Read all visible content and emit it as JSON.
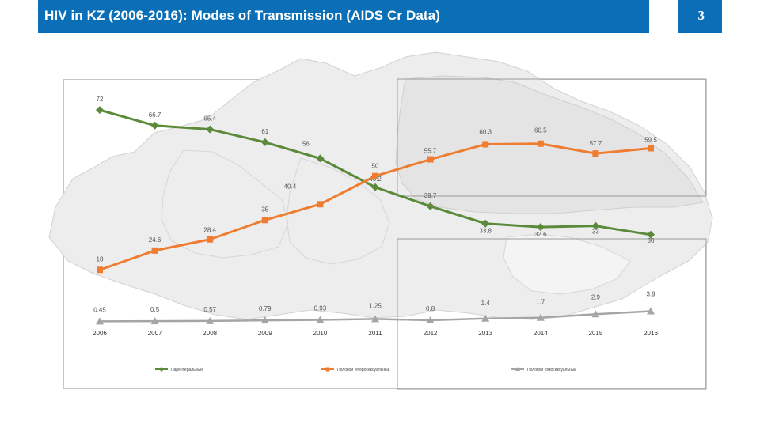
{
  "header": {
    "title": "HIV in KZ (2006-2016): Modes of Transmission (AIDS Cr Data)",
    "page_number": "3"
  },
  "colors": {
    "header_bg": "#0b6fb8",
    "series_parenteral": "#5a8a3a",
    "series_hetero": "#ee7d31",
    "series_homo": "#a5a5a5",
    "map": "#d9d9d9"
  },
  "background_icon": "kazakhstan-map",
  "chart_data": {
    "type": "line",
    "title": "",
    "xlabel": "",
    "ylabel": "",
    "categories": [
      "2006",
      "2007",
      "2008",
      "2009",
      "2010",
      "2011",
      "2012",
      "2013",
      "2014",
      "2015",
      "2016"
    ],
    "ylim": [
      0,
      75
    ],
    "grid": false,
    "legend_position": "bottom",
    "series": [
      {
        "name": "Парентеральный",
        "marker": "diamond",
        "values": [
          72,
          66.7,
          65.4,
          61,
          56,
          46.2,
          39.7,
          33.8,
          32.6,
          33,
          30
        ],
        "labels": [
          "72",
          "66.7",
          "65.4",
          "61",
          "56",
          "46.2",
          "39.7",
          "33.8",
          "32.6",
          "33",
          "30"
        ]
      },
      {
        "name": "Половой гетеросексуальный",
        "marker": "square",
        "values": [
          18,
          24.6,
          28.4,
          35,
          40.4,
          50,
          55.7,
          60.3,
          60.5,
          57.7,
          59.5
        ],
        "labels": [
          "18",
          "24.6",
          "28.4",
          "35",
          "40.4",
          "50",
          "55.7",
          "60.3",
          "60.5",
          "57.7",
          "59.5"
        ]
      },
      {
        "name": "Половой гомосексуальный",
        "marker": "triangle",
        "values": [
          0.45,
          0.5,
          0.57,
          0.79,
          0.93,
          1.25,
          0.8,
          1.4,
          1.7,
          2.9,
          3.9
        ],
        "labels": [
          "0.45",
          "0.5",
          "0.57",
          "0.79",
          "0.93",
          "1.25",
          "0.8",
          "1.4",
          "1.7",
          "2.9",
          "3.9"
        ]
      }
    ]
  }
}
